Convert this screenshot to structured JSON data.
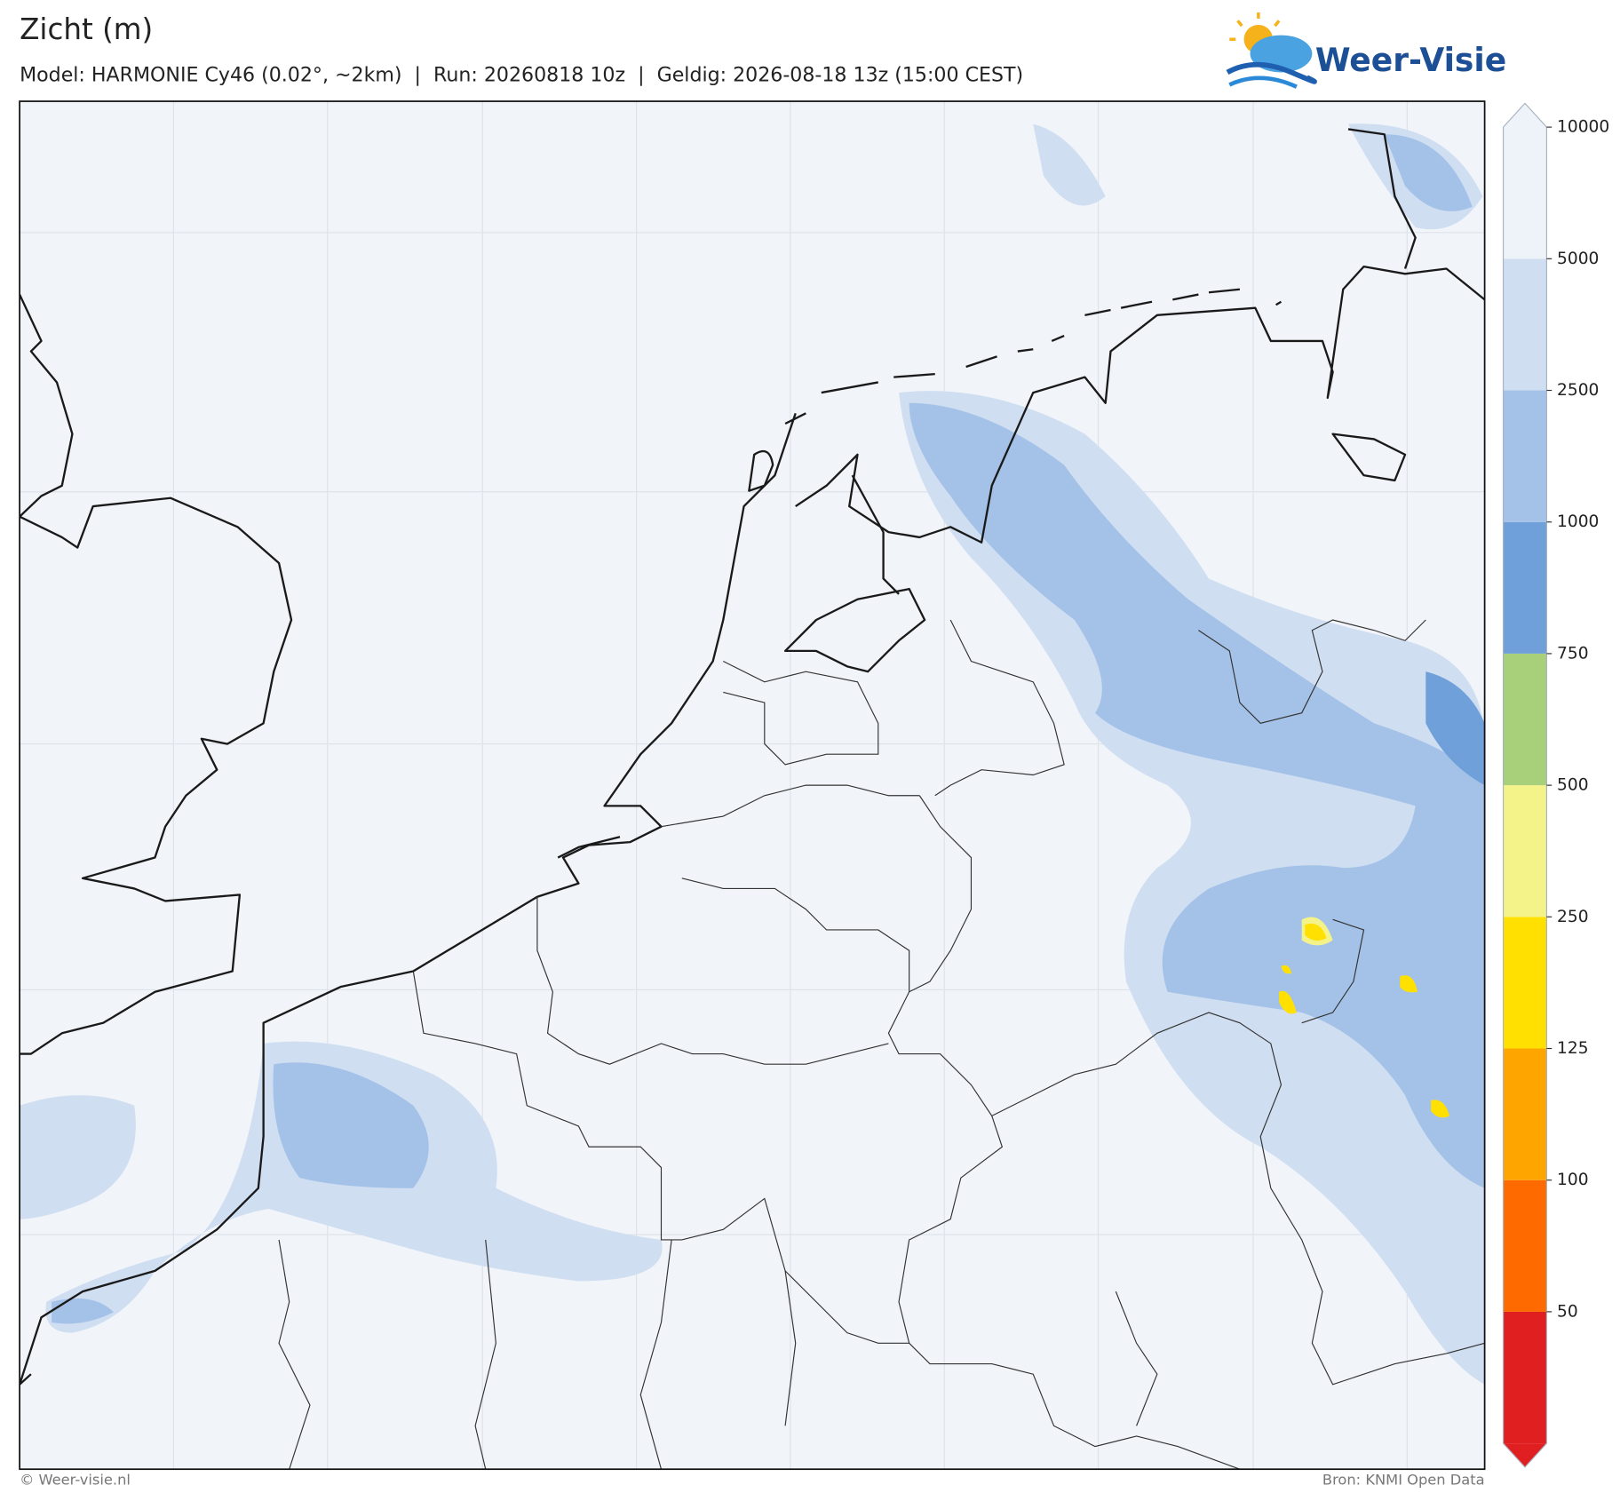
{
  "header": {
    "title": "Zicht (m)",
    "subtitle": "Model: HARMONIE Cy46 (0.02°, ~2km)  |  Run: 20260818 10z  |  Geldig: 2026-08-18 13z (15:00 CEST)",
    "logo": "Weer-Visie"
  },
  "colorbar": {
    "levels": [
      50,
      100,
      125,
      250,
      500,
      750,
      1000,
      2500,
      5000,
      10000
    ],
    "colors": [
      "#e02020",
      "#ff6a00",
      "#ffa500",
      "#ffe000",
      "#f4f38a",
      "#a8d07a",
      "#6fa0da",
      "#a4c2e8",
      "#cfdef1",
      "#eef3f9"
    ]
  },
  "footer": {
    "left": "© Weer-visie.nl",
    "right": "Bron: KNMI Open Data"
  }
}
